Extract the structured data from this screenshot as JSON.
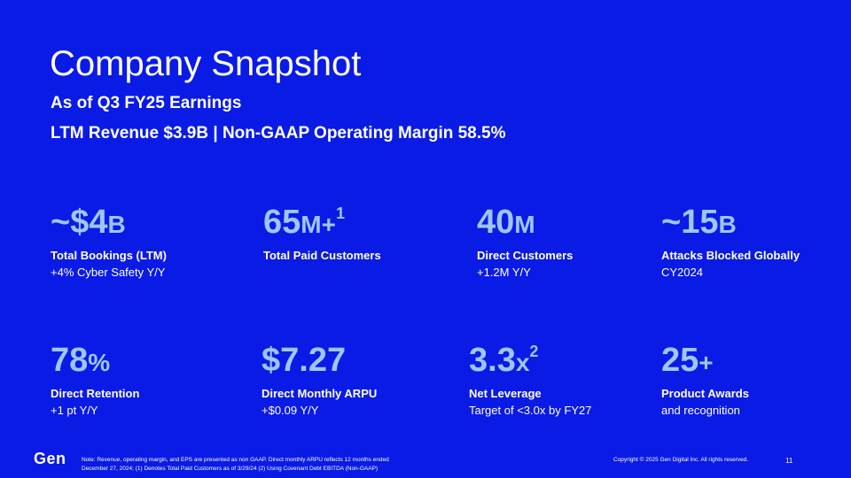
{
  "slide": {
    "title": "Company Snapshot",
    "subtitle": "As of Q3 FY25 Earnings",
    "subtitle2": "LTM Revenue $3.9B | Non-GAAP Operating Margin 58.5%"
  },
  "metrics": [
    {
      "value": "~$4",
      "unit": "B",
      "sup": "",
      "label": "Total Bookings (LTM)",
      "sub": "+4% Cyber Safety Y/Y"
    },
    {
      "value": "65",
      "unit": "M+",
      "sup": "1",
      "label": "Total Paid Customers",
      "sub": ""
    },
    {
      "value": "40",
      "unit": "M",
      "sup": "",
      "label": "Direct Customers",
      "sub": "+1.2M Y/Y"
    },
    {
      "value": "~15",
      "unit": "B",
      "sup": "",
      "label": "Attacks Blocked Globally",
      "sub": "CY2024"
    },
    {
      "value": "78",
      "unit": "%",
      "sup": "",
      "label": "Direct Retention",
      "sub": "+1 pt Y/Y"
    },
    {
      "value": "$7.27",
      "unit": "",
      "sup": "",
      "label": "Direct Monthly ARPU",
      "sub": "+$0.09 Y/Y"
    },
    {
      "value": "3.3",
      "unit": "x",
      "sup": "2",
      "label": "Net Leverage",
      "sub": "Target of <3.0x by FY27"
    },
    {
      "value": "25",
      "unit": "+",
      "sup": "",
      "label": "Product Awards",
      "sub": "and recognition"
    }
  ],
  "footer": {
    "logo": "Gen",
    "note_line1": "Note: Revenue, operating margin, and EPS are presented as non GAAP. Direct monthly ARPU reflects 12 months ended",
    "note_line2": "December 27, 2024; (1) Denotes Total Paid Customers as of 3/29/24 (2) Using Covenant Debt EBITDA (Non-GAAP)",
    "copyright": "Copyright © 2025 Gen Digital Inc. All rights reserved.",
    "page_number": "11"
  },
  "colors": {
    "background": "#0a1be6",
    "metric_value": "#9ec6ff",
    "text": "#ffffff"
  }
}
